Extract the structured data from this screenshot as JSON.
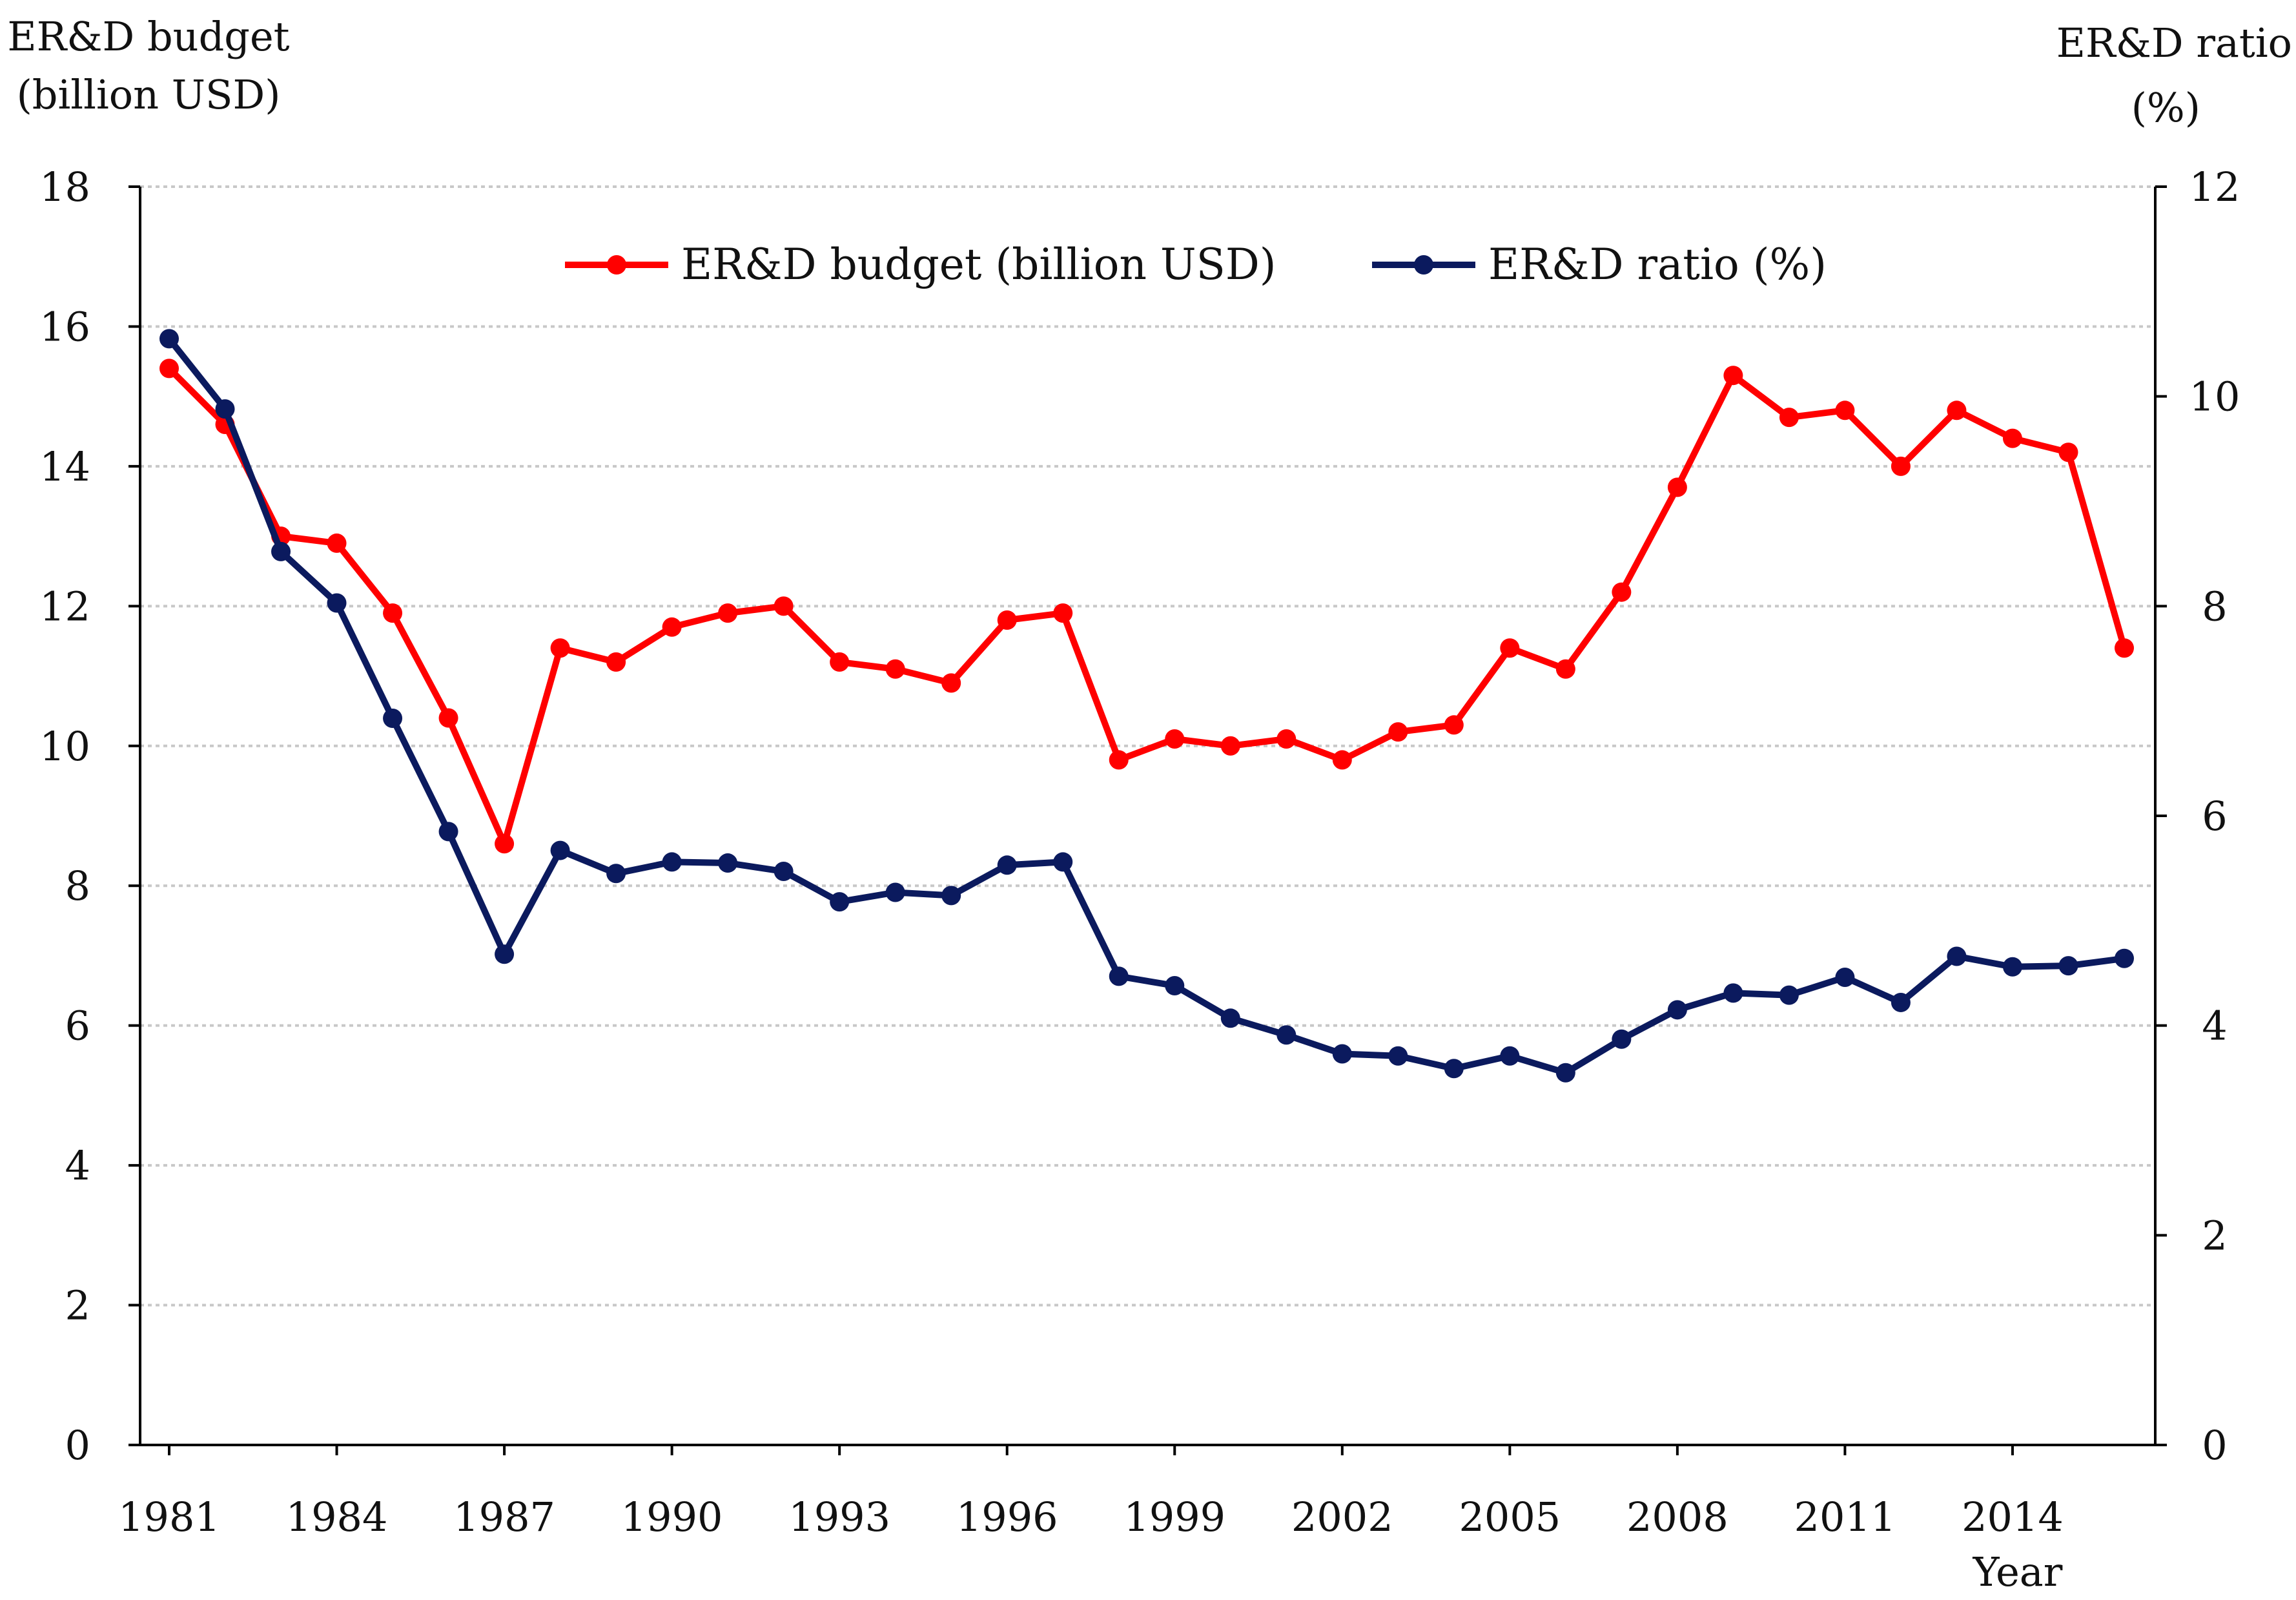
{
  "chart_data": {
    "type": "line",
    "x": [
      1981,
      1982,
      1983,
      1984,
      1985,
      1986,
      1987,
      1988,
      1989,
      1990,
      1991,
      1992,
      1993,
      1994,
      1995,
      1996,
      1997,
      1998,
      1999,
      2000,
      2001,
      2002,
      2003,
      2004,
      2005,
      2006,
      2007,
      2008,
      2009,
      2010,
      2011,
      2012,
      2013,
      2014,
      2015,
      2016
    ],
    "series": [
      {
        "name": "ER&D budget (billion USD)",
        "axis": "left",
        "color": "#ff0000",
        "values": [
          15.4,
          14.6,
          13.0,
          12.9,
          11.9,
          10.4,
          8.6,
          11.4,
          11.2,
          11.7,
          11.9,
          12.0,
          11.2,
          11.1,
          10.9,
          11.8,
          11.9,
          9.8,
          10.1,
          10.0,
          10.1,
          9.8,
          10.2,
          10.3,
          11.4,
          11.1,
          12.2,
          13.7,
          15.3,
          14.7,
          14.8,
          14.0,
          14.8,
          14.4,
          14.2,
          11.4
        ]
      },
      {
        "name": "ER&D ratio (%)",
        "axis": "right",
        "color": "#0b1a5e",
        "values": [
          10.55,
          9.88,
          8.52,
          8.03,
          6.93,
          5.85,
          4.68,
          5.67,
          5.45,
          5.56,
          5.55,
          5.47,
          5.18,
          5.27,
          5.24,
          5.53,
          5.56,
          4.47,
          4.38,
          4.07,
          3.91,
          3.73,
          3.71,
          3.59,
          3.71,
          3.55,
          3.87,
          4.15,
          4.31,
          4.29,
          4.46,
          4.22,
          4.66,
          4.56,
          4.57,
          4.64
        ]
      }
    ],
    "xticks": [
      "1981",
      "1984",
      "1987",
      "1990",
      "1993",
      "1996",
      "1999",
      "2002",
      "2005",
      "2008",
      "2011",
      "2014"
    ],
    "xlabel": "Year",
    "ylabel_left": [
      "ER&D budget",
      "(billion USD)"
    ],
    "ylabel_right": [
      "ER&D ratio",
      "(%)"
    ],
    "ylim_left": [
      0,
      18
    ],
    "yticks_left": [
      "0",
      "2",
      "4",
      "6",
      "8",
      "10",
      "12",
      "14",
      "16",
      "18"
    ],
    "ylim_right": [
      0,
      12
    ],
    "yticks_right": [
      "0",
      "2",
      "4",
      "6",
      "8",
      "10",
      "12"
    ],
    "grid": true,
    "legend_position": "top-center"
  }
}
